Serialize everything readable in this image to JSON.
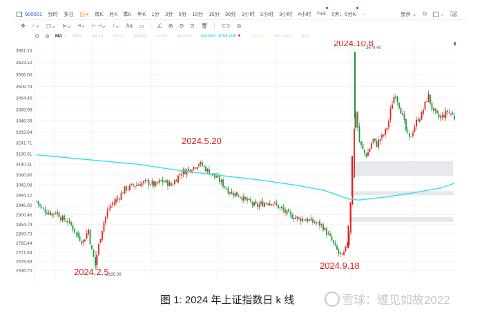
{
  "toolbar": {
    "symbol_code": "000001",
    "periods": [
      {
        "label": "分时",
        "active": false,
        "dot": false
      },
      {
        "label": "多日",
        "active": false,
        "dot": false
      },
      {
        "label": "日K",
        "active": true,
        "dot": false
      },
      {
        "label": "周K",
        "active": false,
        "dot": false
      },
      {
        "label": "月K",
        "active": false,
        "dot": false
      },
      {
        "label": "季K",
        "active": false,
        "dot": false
      },
      {
        "label": "年K",
        "active": false,
        "dot": false
      },
      {
        "label": "1分",
        "active": false,
        "dot": false
      },
      {
        "label": "3分",
        "active": false,
        "dot": false
      },
      {
        "label": "5分",
        "active": false,
        "dot": false
      },
      {
        "label": "10分",
        "active": false,
        "dot": false
      },
      {
        "label": "15分",
        "active": false,
        "dot": false
      },
      {
        "label": "30分",
        "active": false,
        "dot": false
      },
      {
        "label": "1小时",
        "active": false,
        "dot": false
      },
      {
        "label": "2小时",
        "active": false,
        "dot": false
      },
      {
        "label": "3小时",
        "active": false,
        "dot": false
      },
      {
        "label": "4小时",
        "active": false,
        "dot": false
      },
      {
        "label": "Tick",
        "active": false,
        "dot": true
      },
      {
        "label": "5天：5分K",
        "active": false,
        "dot": true
      }
    ],
    "display_label": "显示",
    "drawing_tools": [
      "move-icon",
      "line-icon",
      "rectangle-icon",
      "path-icon",
      "fib-icon",
      "measure-icon",
      "arrow-icon",
      "text-icon",
      "note-icon",
      "angle-icon",
      "arc-icon",
      "circle-minus-icon",
      "target-icon",
      "trash-icon",
      "link-icon",
      "eye-icon"
    ]
  },
  "indicators": {
    "ma_label": "MA",
    "items": [
      {
        "label": "MA5",
        "color": "#f4b8b8"
      },
      {
        "label": "MA10",
        "color": "#c6d2ec"
      },
      {
        "label": "MA20",
        "color": "#eec6e6"
      },
      {
        "label": "MA30",
        "color": "#b8c8f0"
      },
      {
        "label": "MA60",
        "color": "#c8ecd8"
      },
      {
        "label": "MA120",
        "color": "#f0b8c8"
      },
      {
        "label": "MA250: 3054.295",
        "color": "#1ec8e0"
      },
      {
        "label": "MA500",
        "color": "#f4e6a8"
      },
      {
        "label": "MA1000",
        "color": "#d4d4e8"
      },
      {
        "label": "MA1",
        "color": "#d8d8d8"
      }
    ]
  },
  "chart_data": {
    "type": "candlestick",
    "title": "2024年上证指数日k线",
    "y_ticks": [
      "3681.15",
      "3623.12",
      "3566.00",
      "3509.78",
      "3454.45",
      "3399.99",
      "3346.39",
      "3293.64",
      "3241.71",
      "3190.61",
      "3140.31",
      "3090.80",
      "3042.08",
      "2994.12",
      "2946.92",
      "2900.46",
      "2854.74",
      "2809.73",
      "2765.44",
      "2721.84",
      "2678.93",
      "2636.70"
    ],
    "annotations": [
      {
        "label": "2024.2.5",
        "note": "2635.09"
      },
      {
        "label": "2024.5.20"
      },
      {
        "label": "2024.9.18"
      },
      {
        "label": "2024.10.8",
        "note": "3674.40"
      }
    ],
    "ma250_current": 3054.295,
    "up_color": "#e02020",
    "down_color": "#1a9a3a",
    "ma250_color": "#2ee0ea"
  },
  "caption": "图 1:  2024 年上证指数日 k 线",
  "watermark": "雪球：缠见如故2022"
}
